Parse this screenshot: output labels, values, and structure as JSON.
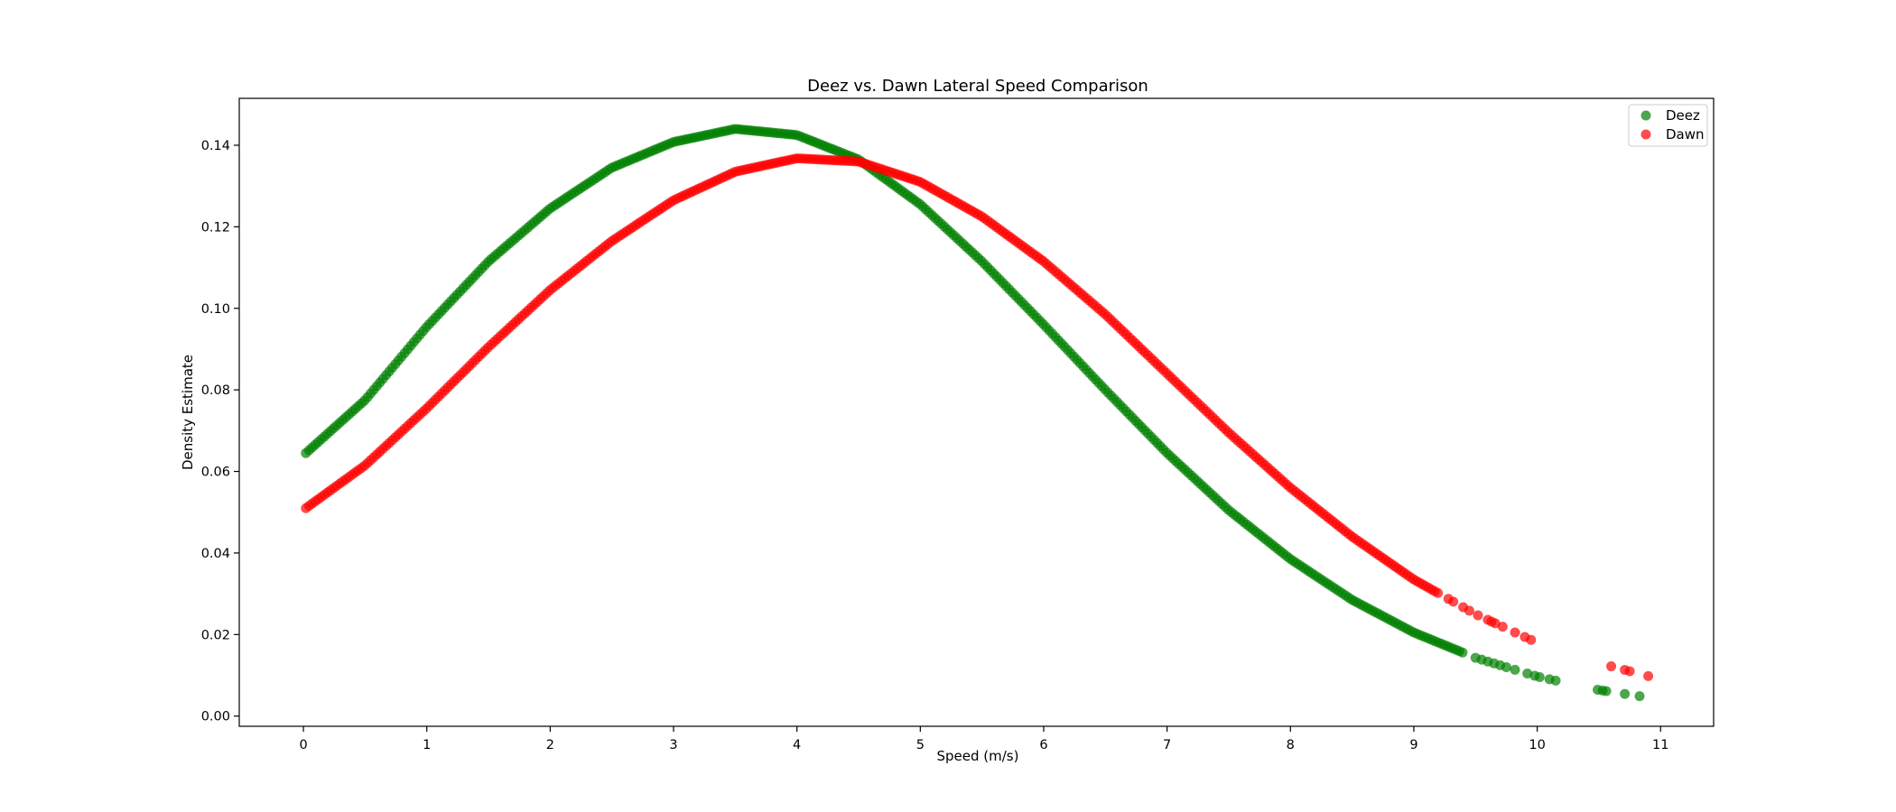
{
  "chart_data": {
    "type": "scatter",
    "title": "Deez vs. Dawn Lateral Speed Comparison",
    "xlabel": "Speed (m/s)",
    "ylabel": "Density Estimate",
    "xlim": [
      -0.52,
      11.43
    ],
    "ylim": [
      -0.0025,
      0.1515
    ],
    "xticks": [
      0,
      1,
      2,
      3,
      4,
      5,
      6,
      7,
      8,
      9,
      10,
      11
    ],
    "yticks": [
      0.0,
      0.02,
      0.04,
      0.06,
      0.08,
      0.1,
      0.12,
      0.14
    ],
    "ytick_labels": [
      "0.00",
      "0.02",
      "0.04",
      "0.06",
      "0.08",
      "0.10",
      "0.12",
      "0.14"
    ],
    "grid": false,
    "legend": {
      "position": "top-right"
    },
    "series": [
      {
        "name": "Deez",
        "color": "#008000",
        "dense_x_range": [
          0.02,
          9.4
        ],
        "curve": [
          [
            0.02,
            0.0645
          ],
          [
            0.5,
            0.0775
          ],
          [
            1,
            0.0955
          ],
          [
            1.5,
            0.1115
          ],
          [
            2,
            0.1245
          ],
          [
            2.5,
            0.1345
          ],
          [
            3,
            0.1408
          ],
          [
            3.5,
            0.144
          ],
          [
            4,
            0.1425
          ],
          [
            4.5,
            0.1365
          ],
          [
            5,
            0.1255
          ],
          [
            5.5,
            0.1115
          ],
          [
            6,
            0.096
          ],
          [
            6.5,
            0.08
          ],
          [
            7,
            0.0645
          ],
          [
            7.5,
            0.0505
          ],
          [
            8,
            0.0385
          ],
          [
            8.5,
            0.0285
          ],
          [
            9,
            0.0205
          ],
          [
            9.5,
            0.0143
          ],
          [
            10,
            0.0097
          ],
          [
            10.5,
            0.0064
          ],
          [
            11,
            0.0041
          ]
        ],
        "sparse_x": [
          9.5,
          9.55,
          9.6,
          9.65,
          9.7,
          9.75,
          9.82,
          9.92,
          9.98,
          10.02,
          10.1,
          10.15,
          10.49,
          10.53,
          10.56,
          10.71,
          10.83
        ]
      },
      {
        "name": "Dawn",
        "color": "#ff0000",
        "dense_x_range": [
          0.02,
          9.2
        ],
        "curve": [
          [
            0.02,
            0.051
          ],
          [
            0.5,
            0.0615
          ],
          [
            1,
            0.0755
          ],
          [
            1.5,
            0.0905
          ],
          [
            2,
            0.1045
          ],
          [
            2.5,
            0.1165
          ],
          [
            3,
            0.1265
          ],
          [
            3.5,
            0.1335
          ],
          [
            4,
            0.1368
          ],
          [
            4.5,
            0.136
          ],
          [
            5,
            0.131
          ],
          [
            5.5,
            0.1225
          ],
          [
            6,
            0.1115
          ],
          [
            6.5,
            0.0985
          ],
          [
            7,
            0.084
          ],
          [
            7.5,
            0.0695
          ],
          [
            8,
            0.056
          ],
          [
            8.5,
            0.044
          ],
          [
            9,
            0.0335
          ],
          [
            9.5,
            0.025
          ],
          [
            10,
            0.018
          ],
          [
            10.5,
            0.013
          ],
          [
            11,
            0.009
          ]
        ],
        "sparse_x": [
          9.28,
          9.32,
          9.4,
          9.45,
          9.52,
          9.6,
          9.63,
          9.66,
          9.72,
          9.82,
          9.9,
          9.95,
          10.6,
          10.71,
          10.75,
          10.9
        ]
      }
    ]
  }
}
